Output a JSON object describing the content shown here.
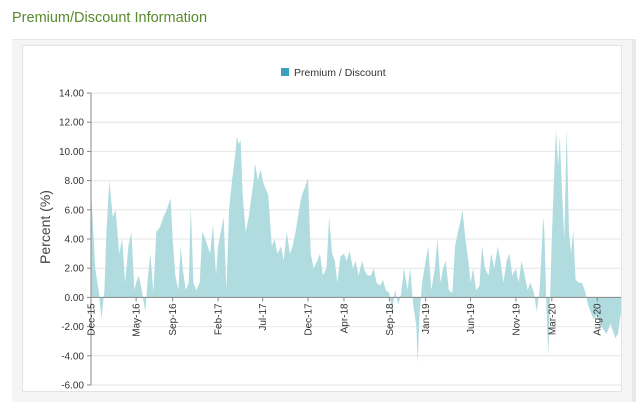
{
  "page": {
    "section_title": "Premium/Discount Information"
  },
  "chart_data": {
    "type": "area",
    "title": "",
    "ylabel": "Percent (%)",
    "xlabel": "",
    "ylim": [
      -6,
      14
    ],
    "yticks": [
      "14.00",
      "12.00",
      "10.00",
      "8.00",
      "6.00",
      "4.00",
      "2.00",
      "0.00",
      "-2.00",
      "-4.00",
      "-6.00"
    ],
    "ytick_values": [
      14,
      12,
      10,
      8,
      6,
      4,
      2,
      0,
      -2,
      -4,
      -6
    ],
    "xlim": [
      "2015-12-01",
      "2020-10-20"
    ],
    "xticks": [
      {
        "label": "Dec-15",
        "date": "2015-12-01"
      },
      {
        "label": "May-16",
        "date": "2016-05-01"
      },
      {
        "label": "Sep-16",
        "date": "2016-09-01"
      },
      {
        "label": "Feb-17",
        "date": "2017-02-01"
      },
      {
        "label": "Jul-17",
        "date": "2017-07-01"
      },
      {
        "label": "Dec-17",
        "date": "2017-12-01"
      },
      {
        "label": "Apr-18",
        "date": "2018-04-01"
      },
      {
        "label": "Sep-18",
        "date": "2018-09-01"
      },
      {
        "label": "Jan-19",
        "date": "2019-01-01"
      },
      {
        "label": "Jun-19",
        "date": "2019-06-01"
      },
      {
        "label": "Nov-19",
        "date": "2019-11-01"
      },
      {
        "label": "Mar-20",
        "date": "2020-03-01"
      },
      {
        "label": "Aug-20",
        "date": "2020-08-01"
      }
    ],
    "grid": true,
    "legend": {
      "position": "top-center",
      "color": "#3a9fbf"
    },
    "series": [
      {
        "name": "Premium / Discount",
        "color": "#b0dcdf",
        "points": [
          [
            "2015-12-01",
            7.5
          ],
          [
            "2015-12-15",
            2.0
          ],
          [
            "2015-12-28",
            0.3
          ],
          [
            "2016-01-05",
            -1.5
          ],
          [
            "2016-01-15",
            0.5
          ],
          [
            "2016-01-22",
            4.5
          ],
          [
            "2016-02-01",
            8.0
          ],
          [
            "2016-02-12",
            5.5
          ],
          [
            "2016-02-22",
            6.0
          ],
          [
            "2016-03-05",
            3.0
          ],
          [
            "2016-03-15",
            4.0
          ],
          [
            "2016-03-25",
            1.0
          ],
          [
            "2016-04-05",
            3.5
          ],
          [
            "2016-04-15",
            4.5
          ],
          [
            "2016-04-25",
            0.5
          ],
          [
            "2016-05-01",
            1.0
          ],
          [
            "2016-05-10",
            1.5
          ],
          [
            "2016-05-20",
            0.5
          ],
          [
            "2016-06-01",
            -1.0
          ],
          [
            "2016-06-10",
            1.5
          ],
          [
            "2016-06-18",
            3.0
          ],
          [
            "2016-06-28",
            0.3
          ],
          [
            "2016-07-08",
            4.5
          ],
          [
            "2016-07-20",
            4.8
          ],
          [
            "2016-08-01",
            5.5
          ],
          [
            "2016-08-12",
            6.0
          ],
          [
            "2016-08-25",
            6.8
          ],
          [
            "2016-09-01",
            4.0
          ],
          [
            "2016-09-10",
            1.5
          ],
          [
            "2016-09-20",
            0.5
          ],
          [
            "2016-09-28",
            3.5
          ],
          [
            "2016-10-05",
            2.0
          ],
          [
            "2016-10-15",
            0.5
          ],
          [
            "2016-10-25",
            1.0
          ],
          [
            "2016-11-01",
            6.2
          ],
          [
            "2016-11-10",
            1.0
          ],
          [
            "2016-11-20",
            0.5
          ],
          [
            "2016-12-01",
            1.0
          ],
          [
            "2016-12-10",
            4.5
          ],
          [
            "2016-12-20",
            4.0
          ],
          [
            "2017-01-05",
            3.0
          ],
          [
            "2017-01-15",
            5.0
          ],
          [
            "2017-01-25",
            1.5
          ],
          [
            "2017-02-01",
            3.5
          ],
          [
            "2017-02-10",
            4.5
          ],
          [
            "2017-02-20",
            5.5
          ],
          [
            "2017-03-01",
            0.5
          ],
          [
            "2017-03-10",
            6.0
          ],
          [
            "2017-03-20",
            8.0
          ],
          [
            "2017-04-01",
            10.0
          ],
          [
            "2017-04-05",
            11.0
          ],
          [
            "2017-04-12",
            10.5
          ],
          [
            "2017-04-18",
            10.8
          ],
          [
            "2017-04-25",
            7.0
          ],
          [
            "2017-05-05",
            4.5
          ],
          [
            "2017-05-15",
            5.5
          ],
          [
            "2017-05-25",
            7.0
          ],
          [
            "2017-06-01",
            8.0
          ],
          [
            "2017-06-05",
            9.2
          ],
          [
            "2017-06-15",
            8.0
          ],
          [
            "2017-06-25",
            8.8
          ],
          [
            "2017-07-01",
            8.0
          ],
          [
            "2017-07-10",
            7.5
          ],
          [
            "2017-07-20",
            7.0
          ],
          [
            "2017-08-01",
            3.5
          ],
          [
            "2017-08-10",
            4.0
          ],
          [
            "2017-08-20",
            3.0
          ],
          [
            "2017-09-01",
            3.5
          ],
          [
            "2017-09-10",
            2.5
          ],
          [
            "2017-09-20",
            4.5
          ],
          [
            "2017-10-01",
            3.0
          ],
          [
            "2017-10-10",
            3.5
          ],
          [
            "2017-10-20",
            4.5
          ],
          [
            "2017-11-01",
            6.0
          ],
          [
            "2017-11-10",
            7.0
          ],
          [
            "2017-11-20",
            7.5
          ],
          [
            "2017-12-01",
            8.2
          ],
          [
            "2017-12-10",
            3.0
          ],
          [
            "2017-12-20",
            2.0
          ],
          [
            "2018-01-01",
            2.5
          ],
          [
            "2018-01-10",
            3.0
          ],
          [
            "2018-01-20",
            1.5
          ],
          [
            "2018-02-01",
            2.0
          ],
          [
            "2018-02-10",
            5.5
          ],
          [
            "2018-02-20",
            3.0
          ],
          [
            "2018-03-01",
            2.5
          ],
          [
            "2018-03-10",
            1.0
          ],
          [
            "2018-03-20",
            2.8
          ],
          [
            "2018-04-01",
            3.0
          ],
          [
            "2018-04-10",
            2.5
          ],
          [
            "2018-04-20",
            3.2
          ],
          [
            "2018-05-01",
            2.0
          ],
          [
            "2018-05-10",
            2.5
          ],
          [
            "2018-05-20",
            1.5
          ],
          [
            "2018-06-01",
            2.5
          ],
          [
            "2018-06-10",
            1.8
          ],
          [
            "2018-06-20",
            1.5
          ],
          [
            "2018-07-01",
            1.5
          ],
          [
            "2018-07-10",
            2.0
          ],
          [
            "2018-07-20",
            1.0
          ],
          [
            "2018-08-01",
            0.8
          ],
          [
            "2018-08-10",
            1.2
          ],
          [
            "2018-08-20",
            0.5
          ],
          [
            "2018-09-01",
            0.3
          ],
          [
            "2018-09-10",
            -1.0
          ],
          [
            "2018-09-20",
            0.5
          ],
          [
            "2018-10-01",
            -0.5
          ],
          [
            "2018-10-10",
            0.2
          ],
          [
            "2018-10-20",
            2.0
          ],
          [
            "2018-11-01",
            0.5
          ],
          [
            "2018-11-10",
            2.0
          ],
          [
            "2018-11-20",
            -0.5
          ],
          [
            "2018-12-01",
            -2.0
          ],
          [
            "2018-12-05",
            -4.5
          ],
          [
            "2018-12-12",
            -1.0
          ],
          [
            "2018-12-20",
            1.0
          ],
          [
            "2019-01-01",
            2.5
          ],
          [
            "2019-01-10",
            3.5
          ],
          [
            "2019-01-20",
            0.5
          ],
          [
            "2019-02-01",
            2.0
          ],
          [
            "2019-02-10",
            4.0
          ],
          [
            "2019-02-20",
            1.0
          ],
          [
            "2019-03-01",
            2.0
          ],
          [
            "2019-03-10",
            2.5
          ],
          [
            "2019-03-20",
            0.5
          ],
          [
            "2019-04-01",
            0.3
          ],
          [
            "2019-04-10",
            3.5
          ],
          [
            "2019-04-20",
            4.5
          ],
          [
            "2019-05-01",
            5.5
          ],
          [
            "2019-05-05",
            6.0
          ],
          [
            "2019-05-15",
            4.0
          ],
          [
            "2019-05-25",
            2.5
          ],
          [
            "2019-06-01",
            1.0
          ],
          [
            "2019-06-10",
            2.0
          ],
          [
            "2019-06-20",
            0.5
          ],
          [
            "2019-07-01",
            0.8
          ],
          [
            "2019-07-10",
            3.5
          ],
          [
            "2019-07-20",
            2.0
          ],
          [
            "2019-08-01",
            1.5
          ],
          [
            "2019-08-10",
            3.0
          ],
          [
            "2019-08-20",
            2.0
          ],
          [
            "2019-09-01",
            3.5
          ],
          [
            "2019-09-10",
            2.5
          ],
          [
            "2019-09-20",
            1.0
          ],
          [
            "2019-10-01",
            2.5
          ],
          [
            "2019-10-10",
            3.0
          ],
          [
            "2019-10-20",
            1.5
          ],
          [
            "2019-11-01",
            2.0
          ],
          [
            "2019-11-10",
            1.0
          ],
          [
            "2019-11-20",
            2.5
          ],
          [
            "2019-12-01",
            1.5
          ],
          [
            "2019-12-10",
            0.5
          ],
          [
            "2019-12-20",
            1.0
          ],
          [
            "2020-01-01",
            0.3
          ],
          [
            "2020-01-10",
            -1.0
          ],
          [
            "2020-01-20",
            0.5
          ],
          [
            "2020-02-01",
            5.5
          ],
          [
            "2020-02-05",
            4.5
          ],
          [
            "2020-02-12",
            -0.8
          ],
          [
            "2020-02-18",
            -4.0
          ],
          [
            "2020-02-25",
            0.5
          ],
          [
            "2020-03-01",
            4.0
          ],
          [
            "2020-03-08",
            8.0
          ],
          [
            "2020-03-15",
            11.5
          ],
          [
            "2020-03-22",
            9.0
          ],
          [
            "2020-03-28",
            11.0
          ],
          [
            "2020-04-05",
            7.0
          ],
          [
            "2020-04-12",
            4.0
          ],
          [
            "2020-04-20",
            11.6
          ],
          [
            "2020-04-28",
            4.5
          ],
          [
            "2020-05-05",
            3.0
          ],
          [
            "2020-05-12",
            4.6
          ],
          [
            "2020-05-20",
            1.2
          ],
          [
            "2020-06-01",
            1.0
          ],
          [
            "2020-06-10",
            1.0
          ],
          [
            "2020-06-20",
            0.5
          ],
          [
            "2020-07-01",
            -0.5
          ],
          [
            "2020-07-10",
            -1.0
          ],
          [
            "2020-07-20",
            -1.5
          ],
          [
            "2020-08-01",
            -1.2
          ],
          [
            "2020-08-15",
            -2.0
          ],
          [
            "2020-09-01",
            -2.5
          ],
          [
            "2020-09-15",
            -1.8
          ],
          [
            "2020-10-01",
            -2.8
          ],
          [
            "2020-10-10",
            -2.5
          ],
          [
            "2020-10-20",
            -1.0
          ]
        ]
      }
    ]
  }
}
